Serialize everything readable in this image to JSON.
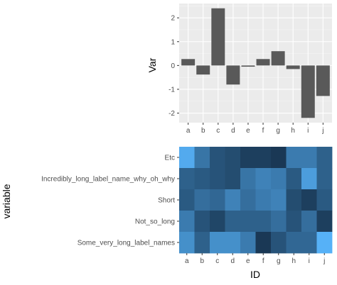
{
  "chart_data": [
    {
      "type": "bar",
      "categories": [
        "a",
        "b",
        "c",
        "d",
        "e",
        "f",
        "g",
        "h",
        "i",
        "j"
      ],
      "values": [
        0.27,
        -0.38,
        2.4,
        -0.8,
        -0.05,
        0.27,
        0.6,
        -0.15,
        -2.2,
        -1.28
      ],
      "title": "",
      "xlabel": "",
      "ylabel": "Var",
      "ylim": [
        -2.4,
        2.6
      ],
      "yticks": [
        2,
        1,
        0,
        -1,
        -2
      ],
      "ytick_labels": [
        "2",
        "1",
        "0",
        "-1",
        "-2"
      ],
      "grid": true,
      "colors": {
        "bar": "#595959",
        "panel": "#ebebeb",
        "grid": "#ffffff"
      }
    },
    {
      "type": "heatmap",
      "x": [
        "a",
        "b",
        "c",
        "d",
        "e",
        "f",
        "g",
        "h",
        "i",
        "j"
      ],
      "y": [
        "Etc",
        "Incredibly_long_label_name_why_oh_why",
        "Short",
        "Not_so_long",
        "Some_very_long_label_names"
      ],
      "xlabel": "ID",
      "ylabel": "variable",
      "values": [
        [
          0.95,
          0.55,
          0.3,
          0.25,
          0.15,
          0.15,
          0.1,
          0.6,
          0.6,
          0.4
        ],
        [
          0.4,
          0.35,
          0.3,
          0.25,
          0.55,
          0.65,
          0.6,
          0.35,
          0.85,
          0.4
        ],
        [
          0.35,
          0.5,
          0.45,
          0.65,
          0.5,
          0.6,
          0.65,
          0.25,
          0.15,
          0.35
        ],
        [
          0.6,
          0.3,
          0.2,
          0.4,
          0.4,
          0.4,
          0.5,
          0.3,
          0.5,
          0.15
        ],
        [
          0.75,
          0.4,
          0.75,
          0.75,
          0.6,
          0.1,
          0.3,
          0.45,
          0.45,
          1.0
        ]
      ],
      "colors": {
        "low": "#132b43",
        "high": "#56b1f7"
      },
      "legend": "none"
    }
  ]
}
